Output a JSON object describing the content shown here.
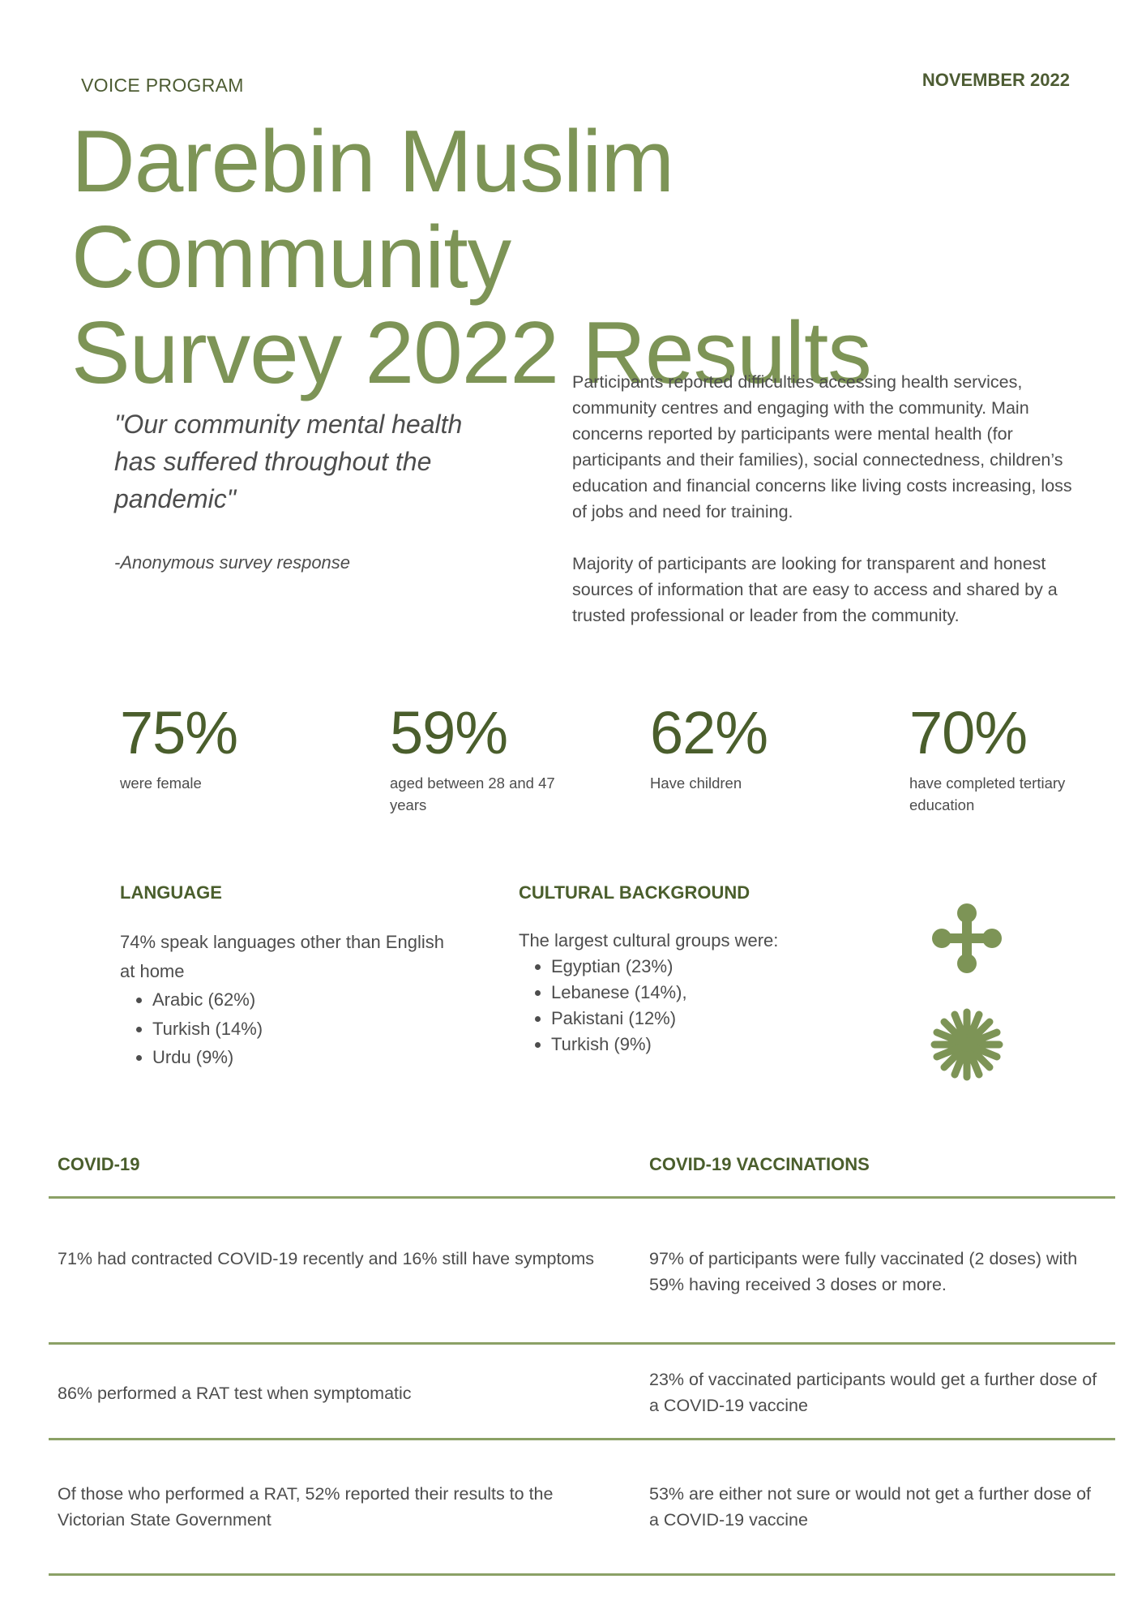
{
  "header": {
    "program": "VOICE PROGRAM",
    "date": "NOVEMBER 2022",
    "title_line1": "Darebin Muslim Community",
    "title_line2": "Survey 2022 Results"
  },
  "quote": {
    "text": "\"Our community mental health has suffered throughout the pandemic\"",
    "attribution": "-Anonymous survey response"
  },
  "summary": {
    "paragraph1": "Participants reported difficulties accessing health services, community centres and engaging with the community. Main concerns reported by participants were mental health (for participants and their families), social connectedness, children’s education and financial concerns like living costs increasing, loss of jobs and need for training.",
    "paragraph2": "Majority of participants are looking for transparent and honest sources of information that are easy to access and shared by a trusted professional or leader from the community."
  },
  "stats": [
    {
      "value": "75%",
      "label": "were female"
    },
    {
      "value": "59%",
      "label": "aged between 28 and 47 years"
    },
    {
      "value": "62%",
      "label": "Have children"
    },
    {
      "value": "70%",
      "label": "have completed tertiary education"
    }
  ],
  "language": {
    "heading": "LANGUAGE",
    "intro": "74% speak languages other than English at home",
    "items": [
      "Arabic (62%)",
      "Turkish (14%)",
      "Urdu (9%)"
    ]
  },
  "culture": {
    "heading": "CULTURAL BACKGROUND",
    "intro": "The largest cultural groups were:",
    "items": [
      "Egyptian (23%)",
      "Lebanese (14%),",
      "Pakistani (12%)",
      "Turkish (9%)"
    ]
  },
  "decorations": {
    "icons": [
      "flower-cross-icon",
      "asterisk-burst-icon"
    ],
    "color": "#7d9456"
  },
  "covid": {
    "heading": "COVID-19",
    "rows": [
      "71% had contracted COVID-19 recently and 16% still have symptoms",
      "86% performed a RAT test when symptomatic",
      "Of those who performed a RAT, 52% reported their results to the Victorian State Government"
    ]
  },
  "vaccinations": {
    "heading": "COVID-19 VACCINATIONS",
    "rows": [
      "97% of participants were fully vaccinated (2 doses) with 59% having received 3 doses or more.",
      "23% of vaccinated participants would get a further dose of a COVID-19 vaccine",
      "53% are either not sure or would not get a further dose of a COVID-19 vaccine"
    ]
  },
  "colors": {
    "title_green": "#7d9456",
    "dark_green": "#4a5e2c",
    "rule_green": "#8ba166",
    "body_text": "#4d4d4d"
  }
}
